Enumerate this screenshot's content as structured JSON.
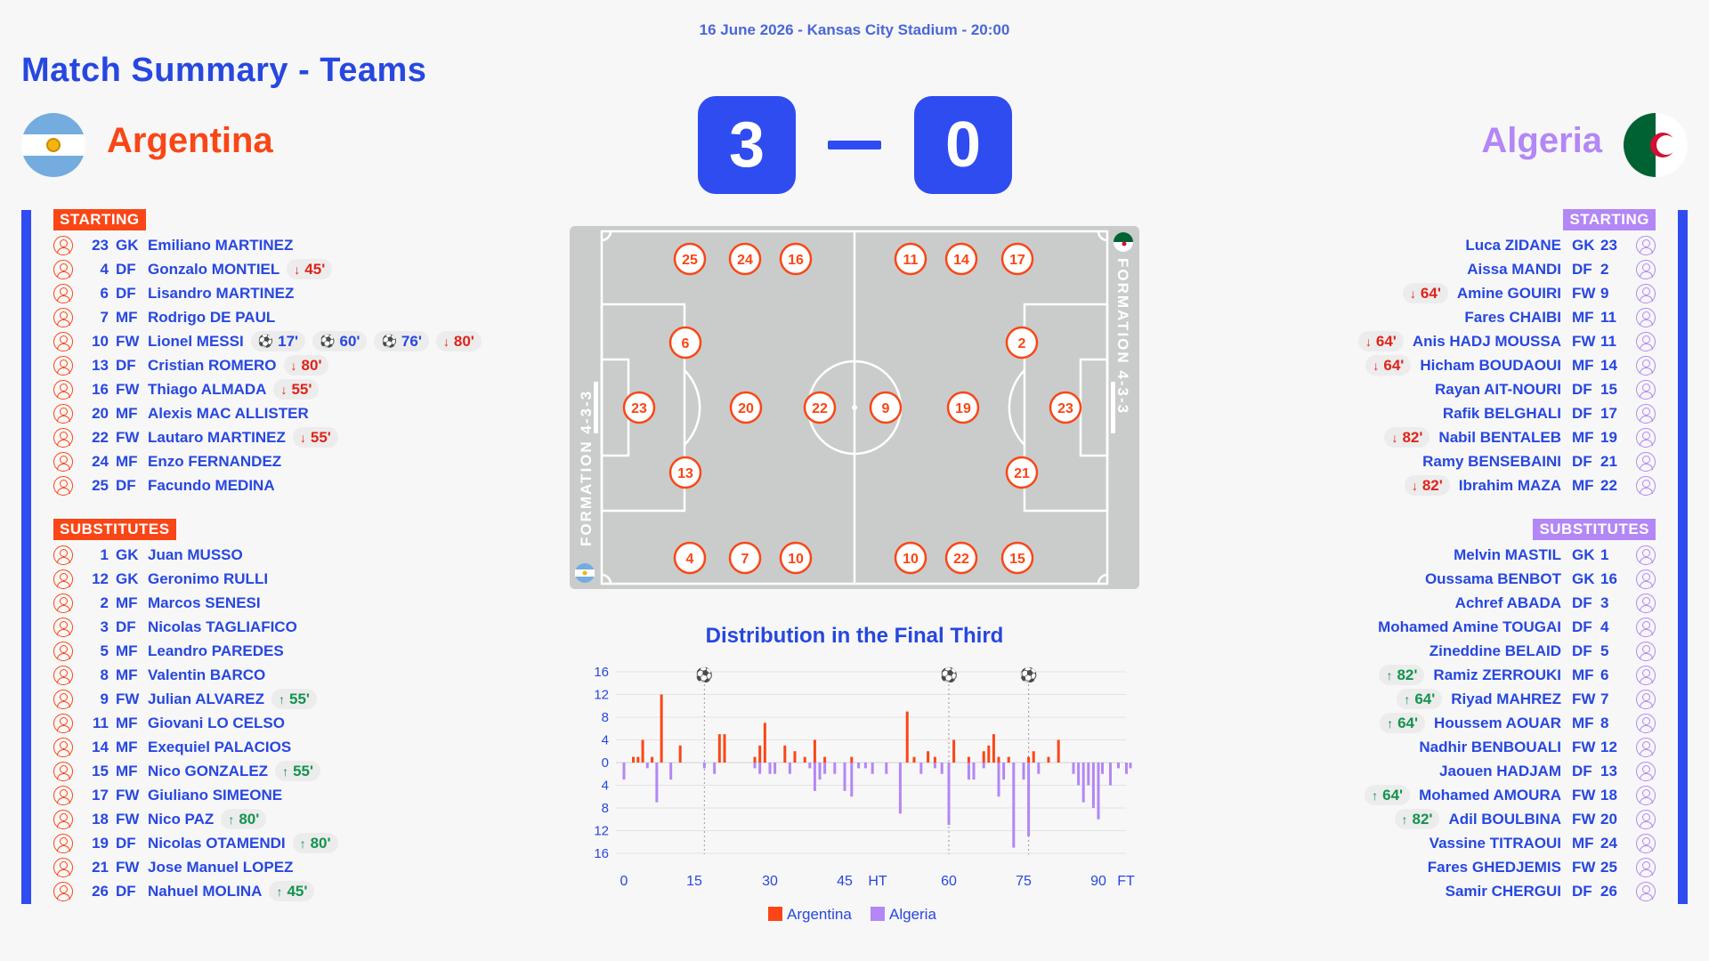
{
  "match": {
    "meta": "16 June 2026 - Kansas City Stadium - 20:00",
    "title": "Match Summary - Teams",
    "home": {
      "name": "Argentina",
      "score": "3"
    },
    "away": {
      "name": "Algeria",
      "score": "0"
    }
  },
  "labels": {
    "starting": "STARTING",
    "substitutes": "SUBSTITUTES"
  },
  "colors": {
    "home": "#fa4616",
    "away": "#b387f5",
    "accent": "#2f4cf0",
    "text": "#2747e0",
    "off": "#e0231a",
    "on": "#12934f"
  },
  "icons": {
    "player": "person-icon",
    "goal": "ball-icon",
    "off": "arrow-down-icon",
    "on": "arrow-up-icon"
  },
  "home_starting": [
    {
      "num": "23",
      "pos": "GK",
      "name": "Emiliano MARTINEZ",
      "events": []
    },
    {
      "num": "4",
      "pos": "DF",
      "name": "Gonzalo MONTIEL",
      "events": [
        {
          "type": "off",
          "min": "45'"
        }
      ]
    },
    {
      "num": "6",
      "pos": "DF",
      "name": "Lisandro MARTINEZ",
      "events": []
    },
    {
      "num": "7",
      "pos": "MF",
      "name": "Rodrigo DE PAUL",
      "events": []
    },
    {
      "num": "10",
      "pos": "FW",
      "name": "Lionel MESSI",
      "events": [
        {
          "type": "goal",
          "min": "17'"
        },
        {
          "type": "goal",
          "min": "60'"
        },
        {
          "type": "goal",
          "min": "76'"
        },
        {
          "type": "off",
          "min": "80'"
        }
      ]
    },
    {
      "num": "13",
      "pos": "DF",
      "name": "Cristian ROMERO",
      "events": [
        {
          "type": "off",
          "min": "80'"
        }
      ]
    },
    {
      "num": "16",
      "pos": "FW",
      "name": "Thiago ALMADA",
      "events": [
        {
          "type": "off",
          "min": "55'"
        }
      ]
    },
    {
      "num": "20",
      "pos": "MF",
      "name": "Alexis MAC ALLISTER",
      "events": []
    },
    {
      "num": "22",
      "pos": "FW",
      "name": "Lautaro MARTINEZ",
      "events": [
        {
          "type": "off",
          "min": "55'"
        }
      ]
    },
    {
      "num": "24",
      "pos": "MF",
      "name": "Enzo FERNANDEZ",
      "events": []
    },
    {
      "num": "25",
      "pos": "DF",
      "name": "Facundo MEDINA",
      "events": []
    }
  ],
  "home_subs": [
    {
      "num": "1",
      "pos": "GK",
      "name": "Juan MUSSO",
      "events": []
    },
    {
      "num": "12",
      "pos": "GK",
      "name": "Geronimo RULLI",
      "events": []
    },
    {
      "num": "2",
      "pos": "MF",
      "name": "Marcos SENESI",
      "events": []
    },
    {
      "num": "3",
      "pos": "DF",
      "name": "Nicolas TAGLIAFICO",
      "events": []
    },
    {
      "num": "5",
      "pos": "MF",
      "name": "Leandro PAREDES",
      "events": []
    },
    {
      "num": "8",
      "pos": "MF",
      "name": "Valentin BARCO",
      "events": []
    },
    {
      "num": "9",
      "pos": "FW",
      "name": "Julian ALVAREZ",
      "events": [
        {
          "type": "on",
          "min": "55'"
        }
      ]
    },
    {
      "num": "11",
      "pos": "MF",
      "name": "Giovani LO CELSO",
      "events": []
    },
    {
      "num": "14",
      "pos": "MF",
      "name": "Exequiel PALACIOS",
      "events": []
    },
    {
      "num": "15",
      "pos": "MF",
      "name": "Nico GONZALEZ",
      "events": [
        {
          "type": "on",
          "min": "55'"
        }
      ]
    },
    {
      "num": "17",
      "pos": "FW",
      "name": "Giuliano SIMEONE",
      "events": []
    },
    {
      "num": "18",
      "pos": "FW",
      "name": "Nico PAZ",
      "events": [
        {
          "type": "on",
          "min": "80'"
        }
      ]
    },
    {
      "num": "19",
      "pos": "DF",
      "name": "Nicolas OTAMENDI",
      "events": [
        {
          "type": "on",
          "min": "80'"
        }
      ]
    },
    {
      "num": "21",
      "pos": "FW",
      "name": "Jose Manuel LOPEZ",
      "events": []
    },
    {
      "num": "26",
      "pos": "DF",
      "name": "Nahuel MOLINA",
      "events": [
        {
          "type": "on",
          "min": "45'"
        }
      ]
    }
  ],
  "away_starting": [
    {
      "num": "23",
      "pos": "GK",
      "name": "Luca ZIDANE",
      "events": []
    },
    {
      "num": "2",
      "pos": "DF",
      "name": "Aissa MANDI",
      "events": []
    },
    {
      "num": "9",
      "pos": "FW",
      "name": "Amine GOUIRI",
      "events": [
        {
          "type": "off",
          "min": "64'"
        }
      ]
    },
    {
      "num": "11",
      "pos": "MF",
      "name": "Fares CHAIBI",
      "events": []
    },
    {
      "num": "11",
      "pos": "FW",
      "name": "Anis HADJ MOUSSA",
      "events": [
        {
          "type": "off",
          "min": "64'"
        }
      ]
    },
    {
      "num": "14",
      "pos": "MF",
      "name": "Hicham BOUDAOUI",
      "events": [
        {
          "type": "off",
          "min": "64'"
        }
      ]
    },
    {
      "num": "15",
      "pos": "DF",
      "name": "Rayan AIT-NOURI",
      "events": []
    },
    {
      "num": "17",
      "pos": "DF",
      "name": "Rafik BELGHALI",
      "events": []
    },
    {
      "num": "19",
      "pos": "MF",
      "name": "Nabil BENTALEB",
      "events": [
        {
          "type": "off",
          "min": "82'"
        }
      ]
    },
    {
      "num": "21",
      "pos": "DF",
      "name": "Ramy BENSEBAINI",
      "events": []
    },
    {
      "num": "22",
      "pos": "MF",
      "name": "Ibrahim MAZA",
      "events": [
        {
          "type": "off",
          "min": "82'"
        }
      ]
    }
  ],
  "away_subs": [
    {
      "num": "1",
      "pos": "GK",
      "name": "Melvin MASTIL",
      "events": []
    },
    {
      "num": "16",
      "pos": "GK",
      "name": "Oussama BENBOT",
      "events": []
    },
    {
      "num": "3",
      "pos": "DF",
      "name": "Achref ABADA",
      "events": []
    },
    {
      "num": "4",
      "pos": "DF",
      "name": "Mohamed Amine TOUGAI",
      "events": []
    },
    {
      "num": "5",
      "pos": "DF",
      "name": "Zineddine BELAID",
      "events": []
    },
    {
      "num": "6",
      "pos": "MF",
      "name": "Ramiz ZERROUKI",
      "events": [
        {
          "type": "on",
          "min": "82'"
        }
      ]
    },
    {
      "num": "7",
      "pos": "FW",
      "name": "Riyad MAHREZ",
      "events": [
        {
          "type": "on",
          "min": "64'"
        }
      ]
    },
    {
      "num": "8",
      "pos": "MF",
      "name": "Houssem AOUAR",
      "events": [
        {
          "type": "on",
          "min": "64'"
        }
      ]
    },
    {
      "num": "12",
      "pos": "FW",
      "name": "Nadhir BENBOUALI",
      "events": []
    },
    {
      "num": "13",
      "pos": "DF",
      "name": "Jaouen HADJAM",
      "events": []
    },
    {
      "num": "18",
      "pos": "FW",
      "name": "Mohamed AMOURA",
      "events": [
        {
          "type": "on",
          "min": "64'"
        }
      ]
    },
    {
      "num": "20",
      "pos": "FW",
      "name": "Adil BOULBINA",
      "events": [
        {
          "type": "on",
          "min": "82'"
        }
      ]
    },
    {
      "num": "24",
      "pos": "MF",
      "name": "Vassine TITRAOUI",
      "events": []
    },
    {
      "num": "25",
      "pos": "FW",
      "name": "Fares GHEDJEMIS",
      "events": []
    },
    {
      "num": "26",
      "pos": "DF",
      "name": "Samir CHERGUI",
      "events": []
    }
  ],
  "formations": {
    "home": "FORMATION 4-3-3",
    "away": "FORMATION 4-3-3"
  },
  "lineup": {
    "home": [
      {
        "num": "23",
        "role": "GK"
      },
      {
        "num": "6",
        "role": "DF"
      },
      {
        "num": "13",
        "role": "DF"
      },
      {
        "num": "20",
        "role": "MF"
      },
      {
        "num": "22",
        "role": "MF"
      },
      {
        "num": "25",
        "role": "FW"
      },
      {
        "num": "24",
        "role": "FW"
      },
      {
        "num": "16",
        "role": "FW"
      },
      {
        "num": "4",
        "role": "FW"
      },
      {
        "num": "7",
        "role": "FW"
      },
      {
        "num": "10",
        "role": "FW"
      }
    ],
    "away": [
      {
        "num": "23",
        "role": "GK"
      },
      {
        "num": "2",
        "role": "DF"
      },
      {
        "num": "21",
        "role": "DF"
      },
      {
        "num": "19",
        "role": "MF"
      },
      {
        "num": "9",
        "role": "MF"
      },
      {
        "num": "11",
        "role": "FW"
      },
      {
        "num": "14",
        "role": "FW"
      },
      {
        "num": "17",
        "role": "FW"
      },
      {
        "num": "10",
        "role": "FW"
      },
      {
        "num": "22",
        "role": "FW"
      },
      {
        "num": "15",
        "role": "FW"
      }
    ]
  },
  "chart_data": {
    "type": "bar",
    "title": "Distribution in the Final Third",
    "x_tick_labels": [
      "0",
      "15",
      "30",
      "45",
      "HT",
      "60",
      "75",
      "90",
      "FT"
    ],
    "y_tick_labels": [
      "16",
      "12",
      "8",
      "4",
      "0",
      "4",
      "8",
      "12",
      "16"
    ],
    "ylim": [
      -16,
      16
    ],
    "goal_minutes": [
      17,
      60,
      76
    ],
    "series": [
      {
        "name": "Argentina",
        "color": "#fa4616",
        "direction": "up",
        "points": [
          [
            2,
            1
          ],
          [
            3,
            1
          ],
          [
            4,
            4
          ],
          [
            6,
            1
          ],
          [
            8,
            12
          ],
          [
            12,
            3
          ],
          [
            20,
            5
          ],
          [
            21,
            5
          ],
          [
            27,
            1
          ],
          [
            28,
            3
          ],
          [
            29,
            7
          ],
          [
            33,
            3
          ],
          [
            35,
            2
          ],
          [
            37,
            1
          ],
          [
            39,
            4
          ],
          [
            41,
            1
          ],
          [
            46,
            1
          ],
          [
            54,
            9
          ],
          [
            55,
            1
          ],
          [
            57,
            2
          ],
          [
            58,
            1
          ],
          [
            61,
            4
          ],
          [
            64,
            1
          ],
          [
            67,
            2
          ],
          [
            68,
            3
          ],
          [
            69,
            5
          ],
          [
            70,
            1
          ],
          [
            72,
            1
          ],
          [
            76,
            1
          ],
          [
            77,
            2
          ],
          [
            80,
            1
          ],
          [
            82,
            4
          ]
        ]
      },
      {
        "name": "Algeria",
        "color": "#b387f5",
        "direction": "down",
        "points": [
          [
            0,
            3
          ],
          [
            5,
            1
          ],
          [
            7,
            7
          ],
          [
            10,
            3
          ],
          [
            17,
            1
          ],
          [
            19,
            2
          ],
          [
            27,
            1
          ],
          [
            28,
            2
          ],
          [
            30,
            2
          ],
          [
            31,
            2
          ],
          [
            34,
            2
          ],
          [
            38,
            1
          ],
          [
            39,
            5
          ],
          [
            40,
            3
          ],
          [
            41,
            2
          ],
          [
            43,
            2
          ],
          [
            45,
            5
          ],
          [
            46,
            6
          ],
          [
            47,
            1
          ],
          [
            48,
            1
          ],
          [
            49,
            2
          ],
          [
            51,
            2
          ],
          [
            53,
            9
          ],
          [
            56,
            2
          ],
          [
            58,
            1
          ],
          [
            59,
            2
          ],
          [
            60,
            11
          ],
          [
            64,
            3
          ],
          [
            65,
            3
          ],
          [
            67,
            1
          ],
          [
            70,
            6
          ],
          [
            71,
            3
          ],
          [
            73,
            15
          ],
          [
            75,
            3
          ],
          [
            76,
            13
          ],
          [
            78,
            2
          ],
          [
            85,
            2
          ],
          [
            86,
            4
          ],
          [
            87,
            7
          ],
          [
            88,
            4
          ],
          [
            89,
            8
          ],
          [
            90,
            10
          ],
          [
            91,
            2
          ],
          [
            93,
            4
          ],
          [
            95,
            1
          ],
          [
            97,
            2
          ],
          [
            98,
            1
          ]
        ]
      }
    ]
  }
}
